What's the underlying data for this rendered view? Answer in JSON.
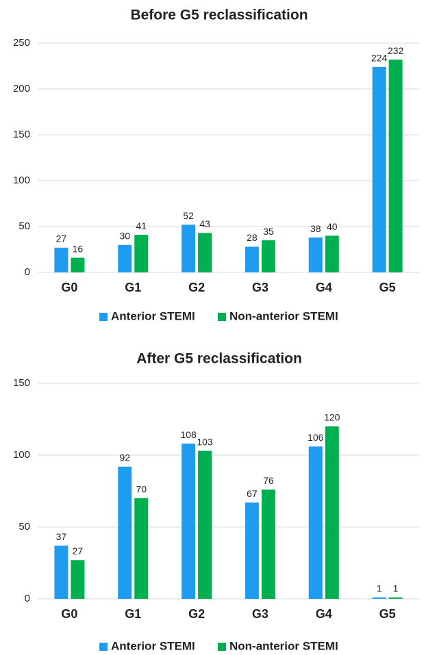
{
  "chart_data": [
    {
      "type": "bar",
      "title": "Before G5 reclassification",
      "categories": [
        "G0",
        "G1",
        "G2",
        "G3",
        "G4",
        "G5"
      ],
      "series": [
        {
          "name": "Anterior STEMI",
          "color": "#1f9bf0",
          "values": [
            27,
            30,
            52,
            28,
            38,
            224
          ]
        },
        {
          "name": "Non-anterior STEMI",
          "color": "#00b050",
          "values": [
            16,
            41,
            43,
            35,
            40,
            232
          ]
        }
      ],
      "ylim": [
        0,
        250
      ],
      "yticks": [
        0,
        50,
        100,
        150,
        200,
        250
      ],
      "grid": true,
      "legend": "bottom"
    },
    {
      "type": "bar",
      "title": "After G5 reclassification",
      "categories": [
        "G0",
        "G1",
        "G2",
        "G3",
        "G4",
        "G5"
      ],
      "series": [
        {
          "name": "Anterior STEMI",
          "color": "#1f9bf0",
          "values": [
            37,
            92,
            108,
            67,
            106,
            1
          ]
        },
        {
          "name": "Non-anterior STEMI",
          "color": "#00b050",
          "values": [
            27,
            70,
            103,
            76,
            120,
            1
          ]
        }
      ],
      "ylim": [
        0,
        150
      ],
      "yticks": [
        0,
        50,
        100,
        150
      ],
      "grid": true,
      "legend": "bottom"
    }
  ]
}
